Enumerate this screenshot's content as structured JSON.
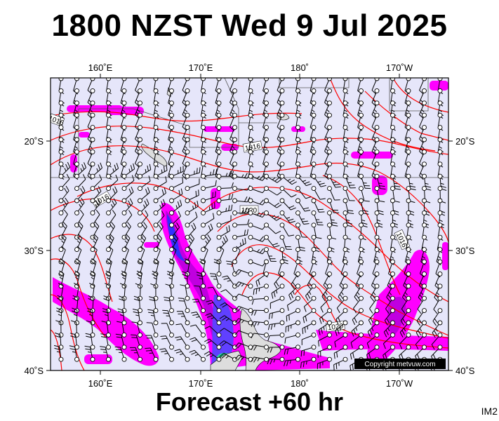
{
  "title": "1800 NZST Wed 9 Jul 2025",
  "footer": "Forecast +60 hr",
  "code": "IM2",
  "copyright": "Copyright metvuw.com",
  "map": {
    "lon_labels": [
      "160˚E",
      "170˚E",
      "180˚",
      "170˚W"
    ],
    "lat_labels": [
      "20˚S",
      "30˚S",
      "40˚S"
    ],
    "isobar_labels": [
      "1016",
      "1016",
      "1016",
      "1020",
      "1020",
      "1016",
      "1016"
    ],
    "colors": {
      "ocean": "#e6e6fa",
      "isobar": "#ff0000",
      "rain_light": "#ff00ff",
      "rain_medium": "#c000e0",
      "rain_heavy": "#3030ff",
      "rain_extreme": "#20e0a0",
      "land": "#dddddd",
      "grid": "#555555"
    }
  }
}
